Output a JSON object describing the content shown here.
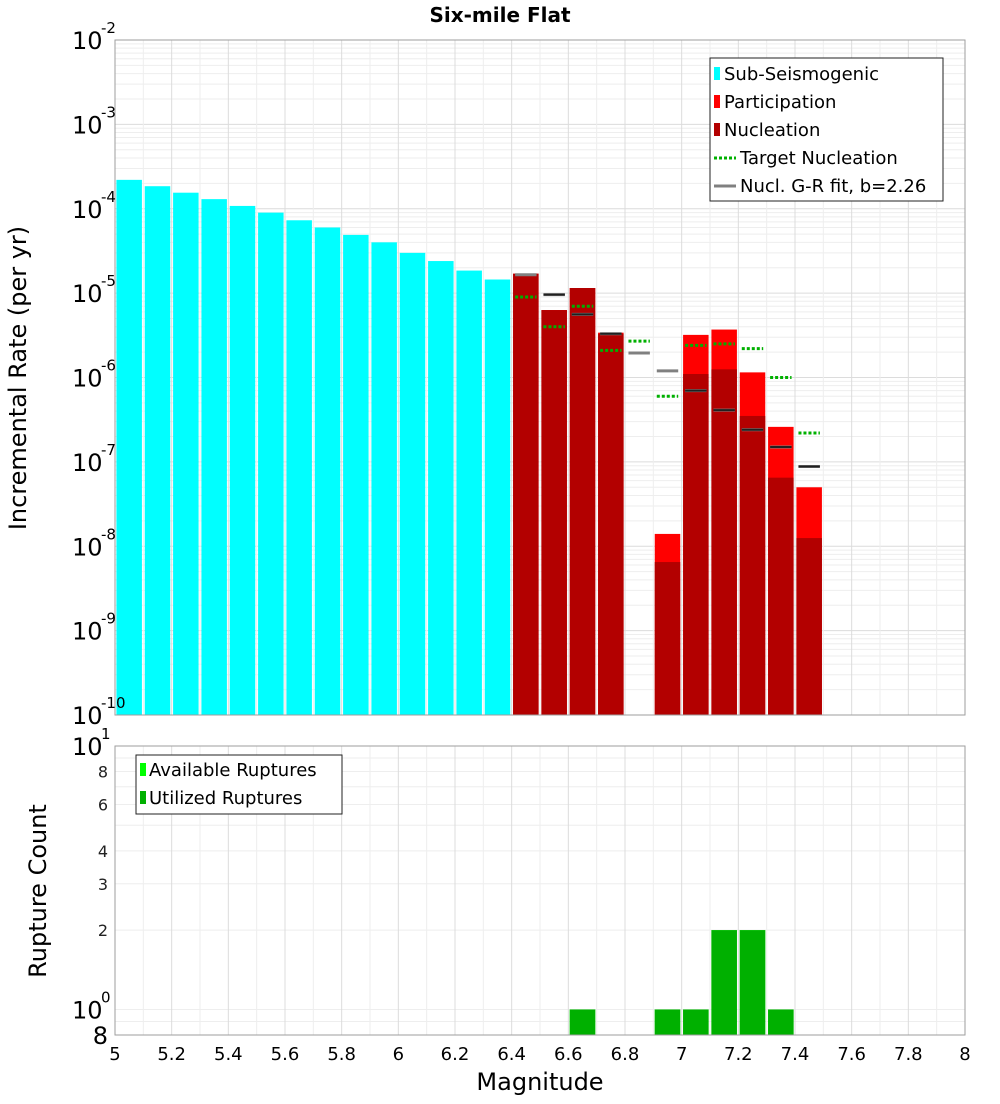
{
  "chart_data": [
    {
      "type": "bar",
      "title": "Six-mile Flat",
      "xlabel": "",
      "ylabel": "Incremental Rate (per yr)",
      "xlim": [
        5,
        8
      ],
      "ylim": [
        1e-10,
        0.01
      ],
      "yscale": "log",
      "grid": true,
      "legend_position": "top-right",
      "bar_width": 0.09,
      "y_tick_labels": [
        {
          "base": "10",
          "exp": "-10",
          "value": 1e-10
        },
        {
          "base": "10",
          "exp": "-9",
          "value": 1e-09
        },
        {
          "base": "10",
          "exp": "-8",
          "value": 1e-08
        },
        {
          "base": "10",
          "exp": "-7",
          "value": 1e-07
        },
        {
          "base": "10",
          "exp": "-6",
          "value": 1e-06
        },
        {
          "base": "10",
          "exp": "-5",
          "value": 1e-05
        },
        {
          "base": "10",
          "exp": "-4",
          "value": 0.0001
        },
        {
          "base": "10",
          "exp": "-3",
          "value": 0.001
        },
        {
          "base": "10",
          "exp": "-2",
          "value": 0.01
        }
      ],
      "legend": [
        {
          "label": "Sub-Seismogenic",
          "kind": "bar",
          "color": "#00ffff"
        },
        {
          "label": "Participation",
          "kind": "bar",
          "color": "#ff0000"
        },
        {
          "label": "Nucleation",
          "kind": "bar",
          "color": "#b30000"
        },
        {
          "label": "Target Nucleation",
          "kind": "dotted",
          "color": "#00b000"
        },
        {
          "label": "Nucl. G-R fit, b=2.26",
          "kind": "line",
          "color": "#808080"
        }
      ],
      "series": [
        {
          "name": "Sub-Seismogenic",
          "color": "#00ffff",
          "x": [
            5.05,
            5.15,
            5.25,
            5.35,
            5.45,
            5.55,
            5.65,
            5.75,
            5.85,
            5.95,
            6.05,
            6.15,
            6.25,
            6.35
          ],
          "values": [
            0.00022,
            0.000185,
            0.000155,
            0.00013,
            0.000108,
            9e-05,
            7.3e-05,
            6e-05,
            4.9e-05,
            4e-05,
            3e-05,
            2.4e-05,
            1.85e-05,
            1.45e-05
          ]
        },
        {
          "name": "Participation",
          "color": "#ff0000",
          "x": [
            6.45,
            6.55,
            6.65,
            6.75,
            6.95,
            7.05,
            7.15,
            7.25,
            7.35,
            7.45
          ],
          "values": [
            1.7e-05,
            6.3e-06,
            1.15e-05,
            3.4e-06,
            1.4e-08,
            3.2e-06,
            3.7e-06,
            1.15e-06,
            2.6e-07,
            5e-08
          ]
        },
        {
          "name": "Nucleation",
          "color": "#b30000",
          "x": [
            6.45,
            6.55,
            6.65,
            6.75,
            6.95,
            7.05,
            7.15,
            7.25,
            7.35,
            7.45
          ],
          "values": [
            1.7e-05,
            6.3e-06,
            1.15e-05,
            3.3e-06,
            6.5e-09,
            1.1e-06,
            1.25e-06,
            3.5e-07,
            6.5e-08,
            1.25e-08
          ]
        },
        {
          "name": "Target Nucleation",
          "color": "#00b000",
          "x": [
            6.45,
            6.55,
            6.65,
            6.75,
            6.85,
            6.95,
            7.05,
            7.15,
            7.25,
            7.35,
            7.45
          ],
          "values": [
            9e-06,
            4e-06,
            7e-06,
            2.1e-06,
            2.7e-06,
            6e-07,
            2.4e-06,
            2.5e-06,
            2.2e-06,
            1e-06,
            2.2e-07
          ]
        },
        {
          "name": "Nucl. G-R fit, b=2.26",
          "color": "#808080",
          "x": [
            6.45,
            6.55,
            6.65,
            6.75,
            6.85,
            6.95,
            7.05,
            7.15,
            7.25,
            7.35,
            7.45
          ],
          "values": [
            1.65e-05,
            9.6e-06,
            5.6e-06,
            3.3e-06,
            1.95e-06,
            1.2e-06,
            7e-07,
            4.1e-07,
            2.4e-07,
            1.5e-07,
            8.8e-08
          ]
        }
      ]
    },
    {
      "type": "bar",
      "title": "",
      "xlabel": "Magnitude",
      "ylabel": "Rupture Count",
      "xlim": [
        5,
        8
      ],
      "ylim": [
        0.8,
        10
      ],
      "yscale": "log",
      "grid": true,
      "legend_position": "top-left",
      "bar_width": 0.09,
      "x_ticks": [
        "5",
        "5.2",
        "5.4",
        "5.6",
        "5.8",
        "6",
        "6.2",
        "6.4",
        "6.6",
        "6.8",
        "7",
        "7.2",
        "7.4",
        "7.6",
        "7.8",
        "8"
      ],
      "y_tick_labels": [
        {
          "base": "10",
          "exp": "1",
          "value": 10,
          "major": true
        },
        {
          "base": "8",
          "exp": "",
          "value": 8,
          "major": false
        },
        {
          "base": "6",
          "exp": "",
          "value": 6,
          "major": false
        },
        {
          "base": "4",
          "exp": "",
          "value": 4,
          "major": false
        },
        {
          "base": "3",
          "exp": "",
          "value": 3,
          "major": false
        },
        {
          "base": "2",
          "exp": "",
          "value": 2,
          "major": false
        },
        {
          "base": "10",
          "exp": "0",
          "value": 1,
          "major": true
        },
        {
          "base": "8",
          "exp": "",
          "value": 0.8,
          "major": true
        }
      ],
      "legend": [
        {
          "label": "Available Ruptures",
          "kind": "bar",
          "color": "#00ff00"
        },
        {
          "label": "Utilized Ruptures",
          "kind": "bar",
          "color": "#00b000"
        }
      ],
      "series": [
        {
          "name": "Available Ruptures",
          "color": "#00ff00",
          "x": [
            6.65,
            6.95,
            7.05,
            7.15,
            7.25,
            7.35
          ],
          "values": [
            1,
            1,
            1,
            2,
            2,
            1
          ]
        },
        {
          "name": "Utilized Ruptures",
          "color": "#00b000",
          "x": [
            6.65,
            6.95,
            7.05,
            7.15,
            7.25,
            7.35
          ],
          "values": [
            1,
            1,
            1,
            2,
            2,
            1
          ]
        }
      ]
    }
  ]
}
